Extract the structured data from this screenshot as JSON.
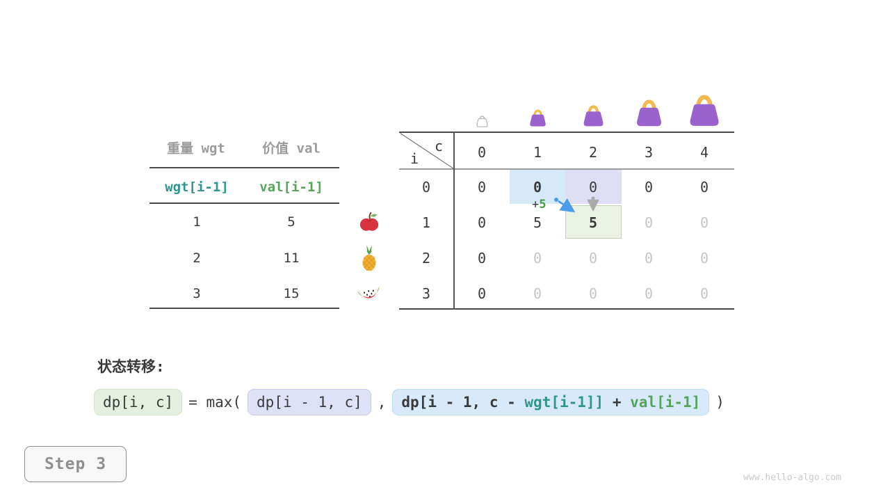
{
  "colors": {
    "accent_teal": "#2f968d",
    "accent_green": "#56a45c",
    "highlight_blue": "#d6e9f8",
    "highlight_lavender": "#dedff5",
    "highlight_green": "#e9f2e4",
    "bag_purple": "#9a62cd",
    "bag_handle": "#f2b950",
    "arrow_blue": "#4a9ee8",
    "arrow_gray": "#ababab"
  },
  "items_table": {
    "col1_header": "重量 wgt",
    "col2_header": "价值 val",
    "var_row": {
      "wgt": "wgt[i-1]",
      "val": "val[i-1]"
    },
    "rows": [
      {
        "wgt": "1",
        "val": "5",
        "fruit_icon": "apple-icon"
      },
      {
        "wgt": "2",
        "val": "11",
        "fruit_icon": "pineapple-icon"
      },
      {
        "wgt": "3",
        "val": "15",
        "fruit_icon": "watermelon-icon"
      }
    ]
  },
  "dp_table": {
    "corner": {
      "col_var": "c",
      "row_var": "i"
    },
    "col_headers": [
      "0",
      "1",
      "2",
      "3",
      "4"
    ],
    "row_headers": [
      "0",
      "1",
      "2",
      "3"
    ],
    "rows": [
      [
        "0",
        "0",
        "0",
        "0",
        "0"
      ],
      [
        "0",
        "5",
        "5",
        "0",
        "0"
      ],
      [
        "0",
        "0",
        "0",
        "0",
        "0"
      ],
      [
        "0",
        "0",
        "0",
        "0",
        "0"
      ]
    ],
    "cell_styles": [
      [
        "dark",
        "bold",
        "dark",
        "dark",
        "dark"
      ],
      [
        "dark",
        "dark",
        "bold",
        "muted",
        "muted"
      ],
      [
        "dark",
        "muted",
        "muted",
        "muted",
        "muted"
      ],
      [
        "dark",
        "muted",
        "muted",
        "muted",
        "muted"
      ]
    ],
    "bag_icons": [
      "empty-bag-icon",
      "bag-icon",
      "bag-icon",
      "bag-icon",
      "bag-icon"
    ]
  },
  "annotation": {
    "op": "+",
    "value": "5"
  },
  "transition": {
    "label": "状态转移:",
    "lhs": "dp[i, c]",
    "eq": "= max(",
    "arg1": "dp[i - 1, c]",
    "comma": ",",
    "arg2_parts": [
      {
        "text": "dp[i - 1, c - ",
        "style": "dark"
      },
      {
        "text": "wgt[i-1]]",
        "style": "teal"
      },
      {
        "text": " + ",
        "style": "dark"
      },
      {
        "text": "val[i-1]",
        "style": "green"
      }
    ],
    "close": ")"
  },
  "step_button": {
    "label": "Step 3"
  },
  "watermark": "www.hello-algo.com"
}
